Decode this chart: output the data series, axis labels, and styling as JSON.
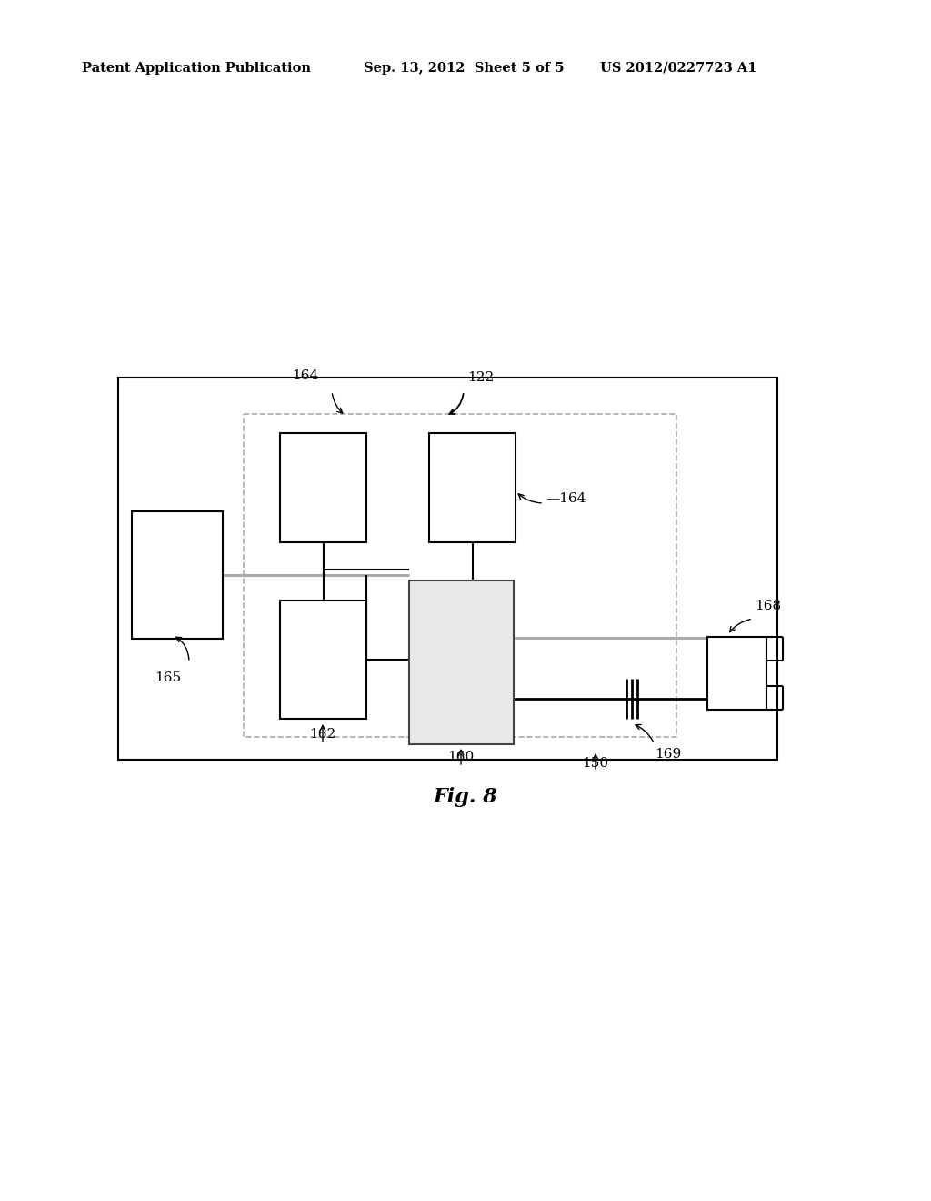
{
  "bg_color": "#ffffff",
  "header_left": "Patent Application Publication",
  "header_mid": "Sep. 13, 2012  Sheet 5 of 5",
  "header_right": "US 2012/0227723 A1",
  "fig_label": "Fig. 8",
  "label_122": "122",
  "label_164a": "164",
  "label_164b": "—164",
  "label_165": "165",
  "label_162": "162",
  "label_160": "160",
  "label_150": "150",
  "label_168": "168",
  "label_169": "169"
}
